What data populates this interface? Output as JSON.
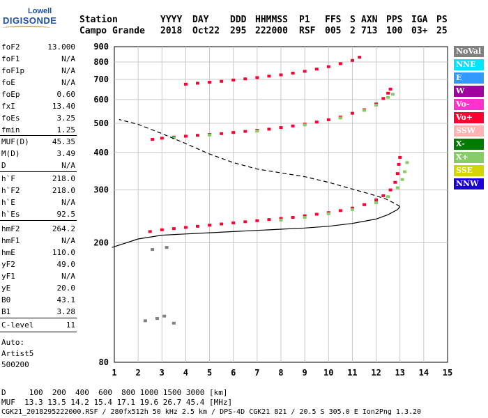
{
  "logo": {
    "line1": "Lowell",
    "line2": "DIGISONDE"
  },
  "header": {
    "labels": [
      "Station",
      "YYYY",
      "DAY",
      "DDD",
      "HHMMSS",
      "P1",
      "FFS",
      "S",
      "AXN",
      "PPS",
      "IGA",
      "PS"
    ],
    "values": [
      "Campo Grande",
      "2018",
      "Oct22",
      "295",
      "222000",
      "RSF",
      "005",
      "2",
      "713",
      "100",
      "03+",
      "25"
    ]
  },
  "params": {
    "group1": [
      {
        "name": "foF2",
        "value": "13.000"
      },
      {
        "name": "foF1",
        "value": "N/A"
      },
      {
        "name": "foF1p",
        "value": "N/A"
      },
      {
        "name": "foE",
        "value": "N/A"
      },
      {
        "name": "foEp",
        "value": "0.60"
      },
      {
        "name": "fxI",
        "value": "13.40"
      },
      {
        "name": "foEs",
        "value": "3.25"
      },
      {
        "name": "fmin",
        "value": "1.25"
      }
    ],
    "group2": [
      {
        "name": "MUF(D)",
        "value": "45.35"
      },
      {
        "name": "M(D)",
        "value": "3.49"
      },
      {
        "name": "D",
        "value": "N/A"
      }
    ],
    "group3": [
      {
        "name": "h`F",
        "value": "218.0"
      },
      {
        "name": "h`F2",
        "value": "218.0"
      },
      {
        "name": "h`E",
        "value": "N/A"
      },
      {
        "name": "h`Es",
        "value": "92.5"
      }
    ],
    "group4": [
      {
        "name": "hmF2",
        "value": "264.2"
      },
      {
        "name": "hmF1",
        "value": "N/A"
      },
      {
        "name": "hmE",
        "value": "110.0"
      },
      {
        "name": "yF2",
        "value": "49.0"
      },
      {
        "name": "yF1",
        "value": "N/A"
      },
      {
        "name": "yE",
        "value": "20.0"
      },
      {
        "name": "B0",
        "value": "43.1"
      },
      {
        "name": "B1",
        "value": "3.28"
      }
    ],
    "group5": [
      {
        "name": "C-level",
        "value": "11"
      }
    ]
  },
  "autoscale": {
    "line1": "Auto:",
    "line2": "Artist5",
    "line3": "500200"
  },
  "legend": [
    {
      "label": "NoVal",
      "color": "#808080",
      "text_color": "#ffffff"
    },
    {
      "label": "NNE",
      "color": "#00e5ff",
      "text_color": "#ffffff"
    },
    {
      "label": "E",
      "color": "#3399ff",
      "text_color": "#ffffff"
    },
    {
      "label": "W",
      "color": "#a000a0",
      "text_color": "#ffffff"
    },
    {
      "label": "Vo-",
      "color": "#ff33cc",
      "text_color": "#ffffff"
    },
    {
      "label": "Vo+",
      "color": "#ff0033",
      "text_color": "#ffffff"
    },
    {
      "label": "SSW",
      "color": "#ffb3b3",
      "text_color": "#ffffff"
    },
    {
      "label": "X-",
      "color": "#007a00",
      "text_color": "#ffffff"
    },
    {
      "label": "X+",
      "color": "#88cc66",
      "text_color": "#ffffff"
    },
    {
      "label": "SSE",
      "color": "#d4d400",
      "text_color": "#ffffff"
    },
    {
      "label": "NNW",
      "color": "#1a00d4",
      "text_color": "#ffffff"
    }
  ],
  "chart_data": {
    "type": "scatter",
    "title": "",
    "xlabel": "",
    "ylabel": "",
    "xlim": [
      1,
      15
    ],
    "ylim": [
      80,
      900
    ],
    "x_ticks": [
      1,
      2,
      3,
      4,
      5,
      6,
      7,
      8,
      9,
      10,
      11,
      12,
      13,
      14,
      15
    ],
    "y_ticks": [
      80,
      200,
      300,
      400,
      500,
      600,
      700,
      800,
      900
    ],
    "y_scale": "log",
    "grid": true,
    "series": [
      {
        "name": "Vo+",
        "kind": "points",
        "points": [
          [
            2.5,
            218
          ],
          [
            3.0,
            221
          ],
          [
            3.5,
            223
          ],
          [
            4.0,
            225
          ],
          [
            4.5,
            227
          ],
          [
            5.0,
            229
          ],
          [
            5.5,
            231
          ],
          [
            6.0,
            233
          ],
          [
            6.5,
            235
          ],
          [
            7.0,
            237
          ],
          [
            7.5,
            239
          ],
          [
            8.0,
            241
          ],
          [
            8.5,
            243
          ],
          [
            9.0,
            246
          ],
          [
            9.5,
            249
          ],
          [
            10.0,
            252
          ],
          [
            10.5,
            256
          ],
          [
            11.0,
            261
          ],
          [
            11.5,
            268
          ],
          [
            12.0,
            278
          ],
          [
            12.3,
            287
          ],
          [
            12.6,
            300
          ],
          [
            12.8,
            318
          ],
          [
            12.9,
            340
          ],
          [
            12.95,
            365
          ],
          [
            13.0,
            385
          ],
          [
            2.6,
            442
          ],
          [
            3.0,
            446
          ],
          [
            3.5,
            450
          ],
          [
            4.0,
            453
          ],
          [
            4.5,
            456
          ],
          [
            5.0,
            459
          ],
          [
            5.5,
            462
          ],
          [
            6.0,
            466
          ],
          [
            6.5,
            470
          ],
          [
            7.0,
            474
          ],
          [
            7.5,
            478
          ],
          [
            8.0,
            484
          ],
          [
            8.5,
            490
          ],
          [
            9.0,
            497
          ],
          [
            9.5,
            505
          ],
          [
            10.0,
            514
          ],
          [
            10.5,
            525
          ],
          [
            11.0,
            540
          ],
          [
            11.5,
            555
          ],
          [
            12.0,
            580
          ],
          [
            12.3,
            605
          ],
          [
            12.5,
            630
          ],
          [
            12.6,
            650
          ],
          [
            4.0,
            675
          ],
          [
            4.5,
            680
          ],
          [
            5.0,
            685
          ],
          [
            5.5,
            690
          ],
          [
            6.0,
            697
          ],
          [
            6.5,
            703
          ],
          [
            7.0,
            710
          ],
          [
            7.5,
            718
          ],
          [
            8.0,
            725
          ],
          [
            8.5,
            735
          ],
          [
            9.0,
            745
          ],
          [
            9.5,
            758
          ],
          [
            10.0,
            772
          ],
          [
            10.5,
            790
          ],
          [
            11.0,
            810
          ],
          [
            11.3,
            830
          ]
        ]
      },
      {
        "name": "X+",
        "kind": "points",
        "points": [
          [
            8.0,
            238
          ],
          [
            9.0,
            243
          ],
          [
            10.0,
            250
          ],
          [
            11.0,
            258
          ],
          [
            12.0,
            272
          ],
          [
            12.5,
            285
          ],
          [
            12.9,
            305
          ],
          [
            13.1,
            325
          ],
          [
            13.2,
            345
          ],
          [
            13.3,
            370
          ],
          [
            3.5,
            447
          ],
          [
            5.0,
            457
          ],
          [
            7.0,
            471
          ],
          [
            9.0,
            494
          ],
          [
            10.5,
            521
          ],
          [
            11.5,
            552
          ],
          [
            12.0,
            575
          ],
          [
            12.5,
            610
          ],
          [
            12.7,
            625
          ]
        ]
      },
      {
        "name": "NoVal",
        "kind": "points",
        "points": [
          [
            2.3,
            110
          ],
          [
            2.8,
            112
          ],
          [
            3.1,
            114
          ],
          [
            3.5,
            108
          ],
          [
            2.6,
            190
          ],
          [
            3.2,
            193
          ]
        ]
      },
      {
        "name": "profile",
        "kind": "line",
        "style": "solid",
        "points": [
          [
            0.9,
            193
          ],
          [
            2.0,
            206
          ],
          [
            3.0,
            212
          ],
          [
            4.0,
            214
          ],
          [
            5.0,
            216
          ],
          [
            6.0,
            218
          ],
          [
            7.0,
            220
          ],
          [
            8.0,
            222
          ],
          [
            9.0,
            224
          ],
          [
            10.0,
            227
          ],
          [
            11.0,
            232
          ],
          [
            12.0,
            240
          ],
          [
            12.5,
            248
          ],
          [
            12.9,
            258
          ],
          [
            13.0,
            264.2
          ]
        ]
      },
      {
        "name": "profile-topside",
        "kind": "line",
        "style": "dashed",
        "points": [
          [
            13.0,
            264.2
          ],
          [
            12.8,
            270
          ],
          [
            12.4,
            280
          ],
          [
            11.8,
            290
          ],
          [
            11.0,
            302
          ],
          [
            10.0,
            318
          ],
          [
            9.0,
            332
          ],
          [
            8.0,
            342
          ],
          [
            7.0,
            352
          ],
          [
            6.0,
            370
          ],
          [
            5.0,
            395
          ],
          [
            4.0,
            428
          ],
          [
            3.0,
            462
          ],
          [
            2.0,
            496
          ],
          [
            1.2,
            515
          ]
        ]
      }
    ]
  },
  "footer": {
    "line1": "D     100  200  400  600  800 1000 1500 3000 [km]",
    "line2": "MUF  13.3 13.5 14.2 15.4 17.1 19.6 26.7 45.4 [MHz]",
    "line3": "CGK21_2018295222000.RSF / 280fx512h 50 kHz 2.5 km / DPS-4D CGK21 821 / 20.5 S 305.0 E Ion2Png 1.3.20"
  }
}
